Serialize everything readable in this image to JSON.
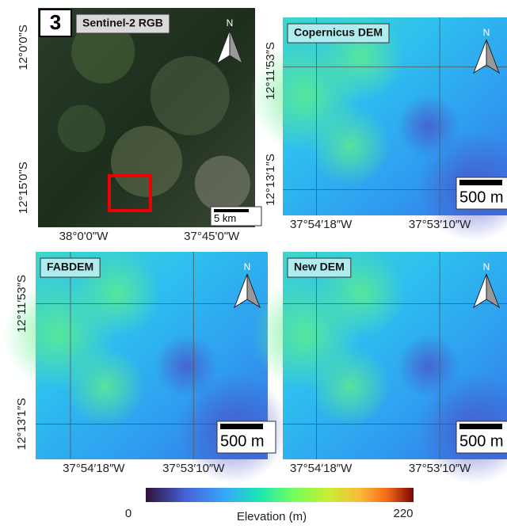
{
  "panels": [
    {
      "label": "3",
      "title": "Sentinel-2 RGB",
      "north": "N",
      "scale_bar": "5 km",
      "y_labels": [
        "12°0'0\"S",
        "12°15'0\"S"
      ],
      "x_labels": [
        "38°0'0\"W",
        "37°45'0\"W"
      ]
    },
    {
      "title": "Copernicus DEM",
      "north": "N",
      "scale_bar": "500 m",
      "y_labels": [
        "12°11′53″S",
        "12°13′1″S"
      ],
      "x_labels": [
        "37°54′18″W",
        "37°53′10″W"
      ]
    },
    {
      "title": "FABDEM",
      "north": "N",
      "scale_bar": "500 m",
      "y_labels": [
        "12°11′53″S",
        "12°13′1″S"
      ],
      "x_labels": [
        "37°54′18″W",
        "37°53′10″W"
      ]
    },
    {
      "title": "New DEM",
      "north": "N",
      "scale_bar": "500 m",
      "x_labels": [
        "37°54′18″W",
        "37°53′10″W"
      ]
    }
  ],
  "colorbar": {
    "min": 0,
    "max": 220,
    "label": "Elevation (m)"
  }
}
